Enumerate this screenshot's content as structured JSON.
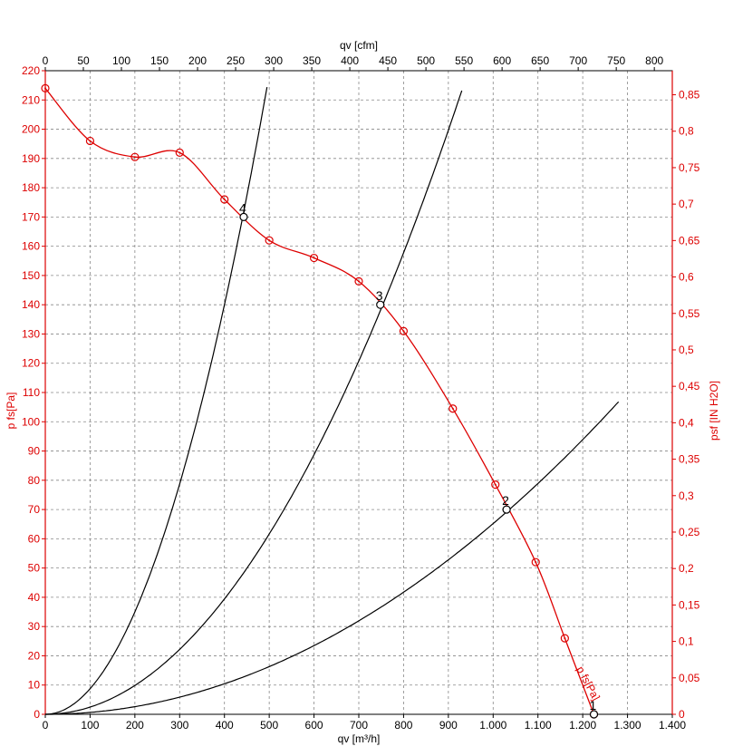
{
  "chart_data": {
    "type": "line",
    "title": "",
    "colors": {
      "fan": "#dd0000",
      "system": "#000000",
      "grid": "#888888"
    },
    "axes": {
      "x_bottom": {
        "label": "qv [m³/h]",
        "range": [
          0,
          1400
        ],
        "tick_labels": [
          "0",
          "100",
          "200",
          "300",
          "400",
          "500",
          "600",
          "700",
          "800",
          "900",
          "1.000",
          "1.100",
          "1.200",
          "1.300",
          "1.400"
        ]
      },
      "x_top": {
        "label": "qv [cfm]",
        "range": [
          0,
          823.6
        ],
        "tick_labels": [
          "0",
          "50",
          "100",
          "150",
          "200",
          "250",
          "300",
          "350",
          "400",
          "450",
          "500",
          "550",
          "600",
          "650",
          "700",
          "750",
          "800"
        ]
      },
      "y_left": {
        "label": "p fs[Pa]",
        "range": [
          0,
          220
        ],
        "tick_labels": [
          "0",
          "10",
          "20",
          "30",
          "40",
          "50",
          "60",
          "70",
          "80",
          "90",
          "100",
          "110",
          "120",
          "130",
          "140",
          "150",
          "160",
          "170",
          "180",
          "190",
          "200",
          "210",
          "220"
        ]
      },
      "y_right": {
        "label": "psf [IN H2O]",
        "range": [
          0,
          0.883
        ],
        "tick_labels": [
          "0",
          "0,05",
          "0,1",
          "0,15",
          "0,2",
          "0,25",
          "0,3",
          "0,35",
          "0,4",
          "0,45",
          "0,5",
          "0,55",
          "0,6",
          "0,65",
          "0,7",
          "0,75",
          "0,8",
          "0,85"
        ]
      }
    },
    "grid": true,
    "fan_curve": {
      "name": "p fs[Pa]",
      "x": [
        0,
        100,
        200,
        300,
        400,
        500,
        600,
        700,
        800,
        910,
        1005,
        1095,
        1160,
        1225
      ],
      "y": [
        214,
        196,
        190.5,
        192,
        176,
        162,
        156,
        148,
        131,
        104.5,
        78.5,
        52,
        26,
        0
      ]
    },
    "system_curves": [
      {
        "k": 0.000875,
        "x_max": 497
      },
      {
        "k": 0.0002465,
        "x_max": 930
      },
      {
        "k": 6.52e-05,
        "x_max": 1280
      }
    ],
    "operating_points": [
      {
        "label": "1",
        "x": 1225,
        "y": 0
      },
      {
        "label": "2",
        "x": 1030,
        "y": 70
      },
      {
        "label": "3",
        "x": 748,
        "y": 140
      },
      {
        "label": "4",
        "x": 443,
        "y": 170
      }
    ]
  }
}
